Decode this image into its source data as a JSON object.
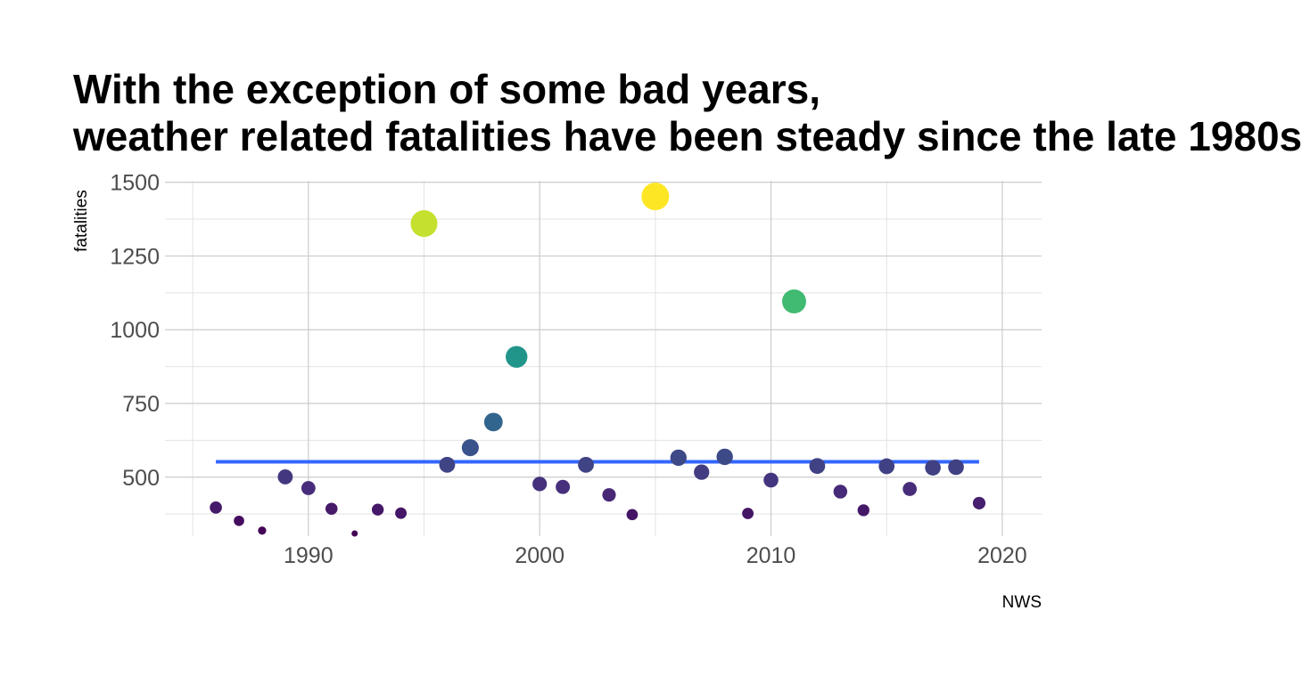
{
  "chart_data": {
    "type": "scatter",
    "title": "With the exception of some bad years,\nweather related fatalities have been steady since the late 1980s",
    "xlabel": "NWS",
    "ylabel": "fatalities",
    "xlim": [
      1983.8,
      2021.7
    ],
    "ylim": [
      300,
      1505
    ],
    "x_ticks": [
      1990,
      2000,
      2010,
      2020
    ],
    "y_ticks": [
      500,
      750,
      1000,
      1250,
      1500
    ],
    "grid": true,
    "legend": "none",
    "colormap": "viridis",
    "x": [
      1986,
      1987,
      1988,
      1989,
      1990,
      1991,
      1992,
      1993,
      1994,
      1995,
      1996,
      1997,
      1998,
      1999,
      2000,
      2001,
      2002,
      2003,
      2004,
      2005,
      2006,
      2007,
      2008,
      2009,
      2010,
      2011,
      2012,
      2013,
      2014,
      2015,
      2016,
      2017,
      2018,
      2019
    ],
    "y": [
      397,
      352,
      319,
      501,
      463,
      393,
      309,
      390,
      378,
      1360,
      542,
      600,
      687,
      908,
      477,
      467,
      542,
      440,
      373,
      1452,
      566,
      517,
      569,
      377,
      490,
      1096,
      538,
      451,
      388,
      537,
      460,
      532,
      534,
      412
    ],
    "trend_line": {
      "x": [
        1986,
        2019
      ],
      "y": [
        552,
        552
      ],
      "color": "#3366ff"
    }
  }
}
